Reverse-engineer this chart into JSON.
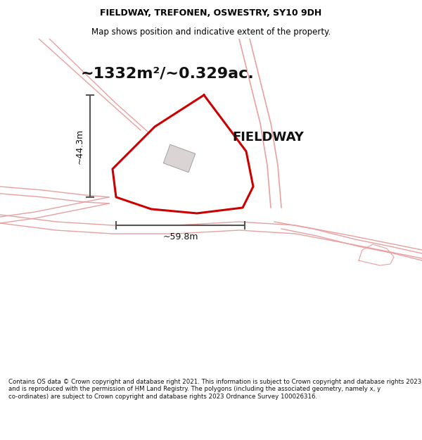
{
  "title": "FIELDWAY, TREFONEN, OSWESTRY, SY10 9DH",
  "subtitle": "Map shows position and indicative extent of the property.",
  "area_label": "~1332m²/~0.329ac.",
  "property_label": "FIELDWAY",
  "dim_height": "~44.3m",
  "dim_width": "~59.8m",
  "footer": "Contains OS data © Crown copyright and database right 2021. This information is subject to Crown copyright and database rights 2023 and is reproduced with the permission of HM Land Registry. The polygons (including the associated geometry, namely x, y co-ordinates) are subject to Crown copyright and database rights 2023 Ordnance Survey 100026316.",
  "map_bg": "#ffffff",
  "road_color": "#e8a0a0",
  "plot_color": "#cc0000",
  "dim_color": "#555555",
  "title_color": "#000000",
  "figsize": [
    6.0,
    6.25
  ],
  "dpi": 100
}
